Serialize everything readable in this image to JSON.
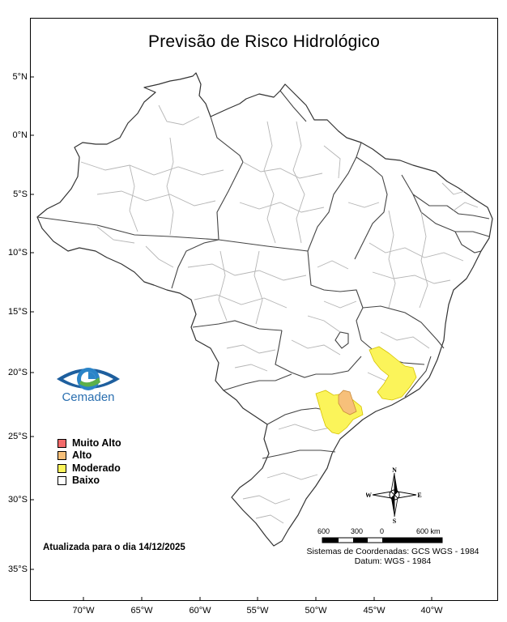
{
  "title": "Previsão de Risco Hidrológico",
  "lat_labels": [
    "5°N",
    "0°N",
    "5°S",
    "10°S",
    "15°S",
    "20°S",
    "25°S",
    "30°S",
    "35°S"
  ],
  "lon_labels": [
    "70°W",
    "65°W",
    "60°W",
    "55°W",
    "50°W",
    "45°W",
    "40°W"
  ],
  "logo": {
    "name": "cemaden-logo-icon",
    "text": "Cemaden"
  },
  "legend": [
    {
      "label": "Muito Alto",
      "color": "#f36b6b"
    },
    {
      "label": "Alto",
      "color": "#f7c07a"
    },
    {
      "label": "Moderado",
      "color": "#fbf45a"
    },
    {
      "label": "Baixo",
      "color": "#ffffff"
    }
  ],
  "updated": "Atualizada para o dia 14/12/2025",
  "scale_labels": [
    "600",
    "300",
    "0",
    "600 km"
  ],
  "compass": {
    "n": "N",
    "s": "S",
    "e": "E",
    "w": "W"
  },
  "coords_line1": "Sistemas de Coordenadas: GCS WGS - 1984",
  "coords_line2": "Datum: WGS - 1984"
}
